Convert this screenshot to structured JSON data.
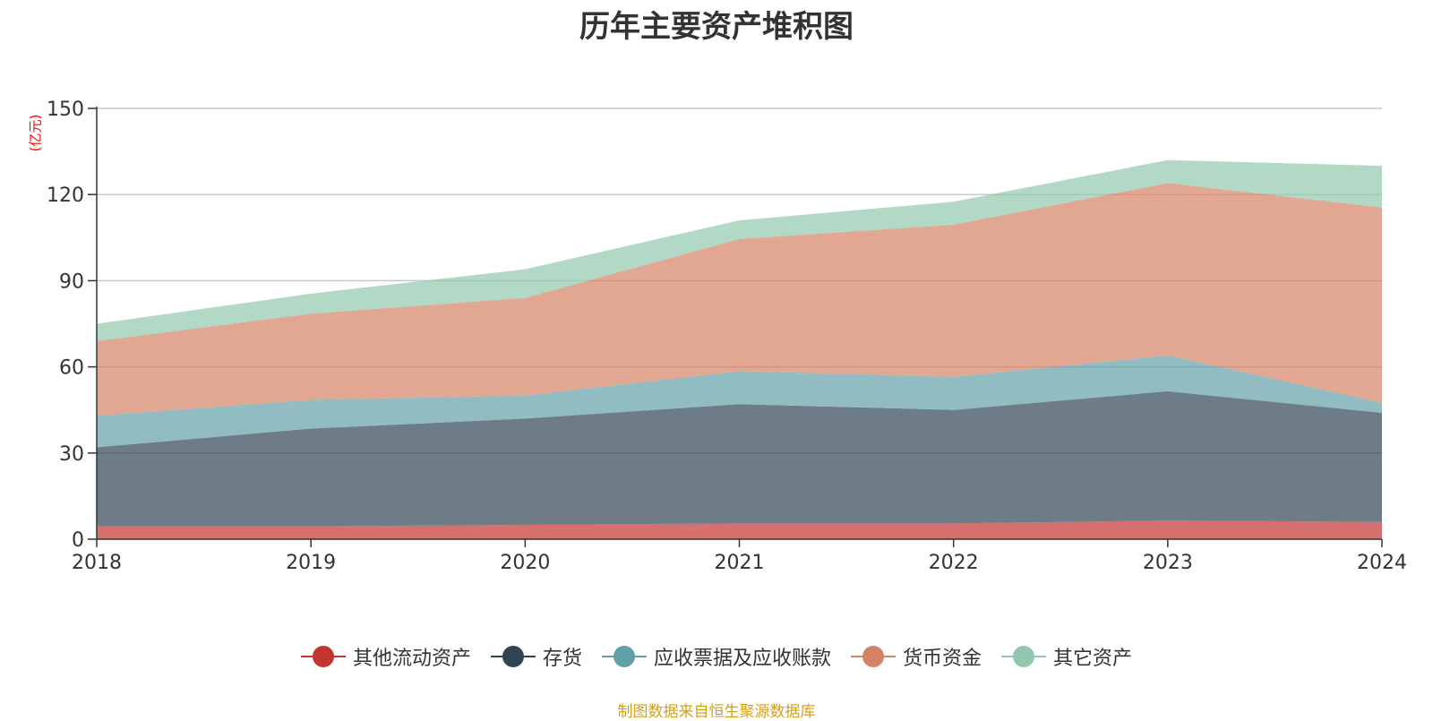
{
  "title": "历年主要资产堆积图",
  "unit_label": "(亿元)",
  "source_note": "制图数据来自恒生聚源数据库",
  "chart_data": {
    "type": "area",
    "stacked": true,
    "title": "历年主要资产堆积图",
    "ylabel": "(亿元)",
    "xlabel": "",
    "x": [
      "2018",
      "2019",
      "2020",
      "2021",
      "2022",
      "2023",
      "2024"
    ],
    "ylim": [
      0,
      150
    ],
    "yticks": [
      0,
      30,
      60,
      90,
      120,
      150
    ],
    "grid": true,
    "legend_position": "bottom",
    "series": [
      {
        "name": "其他流动资产",
        "color": "#c23531",
        "values": [
          4.5,
          4.5,
          5.0,
          5.5,
          5.5,
          6.5,
          6.0
        ]
      },
      {
        "name": "存货",
        "color": "#2f4554",
        "values": [
          27.5,
          34.0,
          37.0,
          41.5,
          39.5,
          45.0,
          38.0
        ]
      },
      {
        "name": "应收票据及应收账款",
        "color": "#61a0a8",
        "values": [
          11.0,
          10.0,
          8.0,
          11.5,
          11.5,
          12.5,
          3.5
        ]
      },
      {
        "name": "货币资金",
        "color": "#d48265",
        "values": [
          26.0,
          30.0,
          34.0,
          46.0,
          53.0,
          60.0,
          68.0
        ]
      },
      {
        "name": "其它资产",
        "color": "#91c7ae",
        "values": [
          6.0,
          7.0,
          10.0,
          6.5,
          8.0,
          8.0,
          14.5
        ]
      }
    ]
  }
}
